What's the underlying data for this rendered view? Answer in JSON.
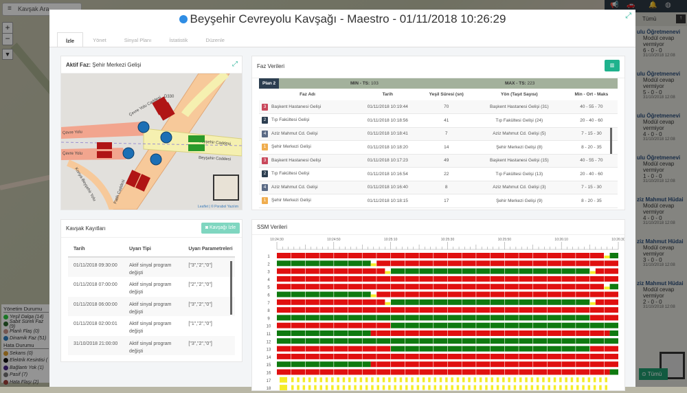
{
  "background": {
    "search_label": "Kavşak Ara",
    "zoom_in": "+",
    "zoom_out": "−",
    "legend": {
      "section1": "Yönetim Durumu",
      "items1": [
        {
          "label": "Yeşil Dalga (14)",
          "color": "#2ecc40"
        },
        {
          "label": "Sabit Süreli Faz (9)",
          "color": "#2d6a2d"
        },
        {
          "label": "Planlı Flaş (0)",
          "color": "#c9958a"
        },
        {
          "label": "Dinamik Faz (51)",
          "color": "#2f7fc0"
        }
      ],
      "section2": "Hata Durumu",
      "items2": [
        {
          "label": "Sekans (0)",
          "color": "#e0a030"
        },
        {
          "label": "Elektrik Kesintisi (",
          "color": "#111111"
        },
        {
          "label": "Bağlantı Yok (1)",
          "color": "#4b2a8a"
        },
        {
          "label": "Pasif (7)",
          "color": "#777777"
        },
        {
          "label": "Hata Flaşı (2)",
          "color": "#a0413a"
        }
      ]
    },
    "right_sidebar": {
      "filter": "Tümü",
      "items": [
        {
          "title": "ulu Öğretmenevi",
          "msg": "Modül cevap vermiyor",
          "code": "6 - 0 - 0",
          "date": "31/10/2018 12:08"
        },
        {
          "title": "ulu Öğretmenevi",
          "msg": "Modül cevap vermiyor",
          "code": "5 - 0 - 0",
          "date": "31/10/2018 12:08"
        },
        {
          "title": "ulu Öğretmenevi",
          "msg": "Modül cevap vermiyor",
          "code": "4 - 0 - 0",
          "date": "31/10/2018 12:08"
        },
        {
          "title": "ulu Öğretmenevi",
          "msg": "Modül cevap vermiyor",
          "code": "1 - 0 - 0",
          "date": "31/10/2018 12:08"
        },
        {
          "title": "ziz Mahmut Hüdai",
          "msg": "Modül cevap vermiyor",
          "code": "4 - 0 - 0",
          "date": "31/10/2018 12:08"
        },
        {
          "title": "ziz Mahmut Hüdai",
          "msg": "Modül cevap vermiyor",
          "code": "3 - 0 - 0",
          "date": "31/10/2018 12:08"
        },
        {
          "title": "ziz Mahmut Hüdai",
          "msg": "Modül cevap vermiyor",
          "code": "2 - 0 - 0",
          "date": "31/10/2018 12:08"
        }
      ],
      "all_button": "⊙ Tümü"
    }
  },
  "modal": {
    "title": "Beyşehir Cevreyolu Kavşağı - Maestro - 01/11/2018 10:26:29",
    "status_color": "#2f8de4",
    "tabs": [
      {
        "label": "İzle",
        "active": true
      },
      {
        "label": "Yönet"
      },
      {
        "label": "Sinyal Planı"
      },
      {
        "label": "İstatistik"
      },
      {
        "label": "Düzenle"
      }
    ]
  },
  "active_phase": {
    "label": "Aktif Faz:",
    "value": "Şehir Merkezi Gelişi",
    "map": {
      "labels": [
        "D330",
        "Çevre Yolu",
        "Çevre Yolu Caddesi",
        "Beyşehir Caddesi",
        "Beyşehir Caddesi",
        "Çevre Yolu",
        "Konya-Beyşehir Yolu",
        "Fatih Caddesi"
      ],
      "attribution": "Leaflet | © Porabol Yazılım"
    }
  },
  "faz": {
    "title": "Faz Verileri",
    "plan": "Plan 2",
    "min_label": "MIN - TS:",
    "min_value": "103",
    "max_label": "MAX - TS:",
    "max_value": "223",
    "columns": [
      "Faz Adı",
      "Tarih",
      "Yeşil Süresi (sn)",
      "Yön (Taşıt Sayısı)",
      "Min - Ort - Maks"
    ],
    "rows": [
      {
        "no": "3",
        "color": "#c9485b",
        "name": "Başkent Hastanesi Gelişi",
        "date": "01/11/2018 10:19:44",
        "green": "70",
        "dir": "Başkent Hastanesi Gelişi (31)",
        "mom": "40 - 55 - 70"
      },
      {
        "no": "2",
        "color": "#2c3e50",
        "name": "Tıp Fakültesi Gelişi",
        "date": "01/11/2018 10:18:56",
        "green": "41",
        "dir": "Tıp Fakültesi Gelişi (24)",
        "mom": "20 - 40 - 60"
      },
      {
        "no": "4",
        "color": "#5a6a85",
        "name": "Aziz Mahmut Cd. Gelişi",
        "date": "01/11/2018 10:18:41",
        "green": "7",
        "dir": "Aziz Mahmut Cd. Gelişi (5)",
        "mom": "7 - 15 - 30"
      },
      {
        "no": "1",
        "color": "#f0ad4e",
        "name": "Şehir Merkezi Gelişi",
        "date": "01/11/2018 10:18:20",
        "green": "14",
        "dir": "Şehir Merkezi Gelişi (8)",
        "mom": "8 - 20 - 35"
      },
      {
        "no": "3",
        "color": "#c9485b",
        "name": "Başkent Hastanesi Gelişi",
        "date": "01/11/2018 10:17:23",
        "green": "49",
        "dir": "Başkent Hastanesi Gelişi (15)",
        "mom": "40 - 55 - 70"
      },
      {
        "no": "2",
        "color": "#2c3e50",
        "name": "Tıp Fakültesi Gelişi",
        "date": "01/11/2018 10:16:54",
        "green": "22",
        "dir": "Tıp Fakültesi Gelişi (13)",
        "mom": "20 - 40 - 60"
      },
      {
        "no": "4",
        "color": "#5a6a85",
        "name": "Aziz Mahmut Cd. Gelişi",
        "date": "01/11/2018 10:16:40",
        "green": "8",
        "dir": "Aziz Mahmut Cd. Gelişi (3)",
        "mom": "7 - 15 - 30"
      },
      {
        "no": "1",
        "color": "#f0ad4e",
        "name": "Şehir Merkezi Gelişi",
        "date": "01/11/2018 10:18:15",
        "green": "17",
        "dir": "Şehir Merkezi Gelişi (9)",
        "mom": "8 - 20 - 35"
      }
    ]
  },
  "records": {
    "title": "Kavşak Kayıtları",
    "button": "Kavşağı İzle",
    "columns": [
      "Tarih",
      "Uyarı Tipi",
      "Uyarı Parametreleri"
    ],
    "rows": [
      {
        "date": "01/11/2018 09:30:00",
        "type": "Aktif sinyal program değişti",
        "params": "[\"3\",\"2\",\"0\"]"
      },
      {
        "date": "01/11/2018 07:00:00",
        "type": "Aktif sinyal program değişti",
        "params": "[\"2\",\"2\",\"0\"]"
      },
      {
        "date": "01/11/2018 06:00:00",
        "type": "Aktif sinyal program değişti",
        "params": "[\"3\",\"2\",\"0\"]"
      },
      {
        "date": "01/11/2018 02:00:01",
        "type": "Aktif sinyal program değişti",
        "params": "[\"1\",\"2\",\"0\"]"
      },
      {
        "date": "31/10/2018 21:00:00",
        "type": "Aktif sinyal program değişti",
        "params": "[\"3\",\"2\",\"0\"]"
      }
    ]
  },
  "ssm": {
    "title": "SSM Verileri",
    "chart_data": {
      "type": "timeline",
      "x_range": [
        "10:24:30",
        "10:26:30"
      ],
      "x_ticks": [
        "10:24:30",
        "10:24:50",
        "10:25:10",
        "10:25:30",
        "10:25:50",
        "10:26:10",
        "10:26:30"
      ],
      "colors": {
        "red": "#e01010",
        "green": "#0f7a10",
        "yellow": "#f5ec2a"
      },
      "rows": [
        {
          "label": "1",
          "segments": [
            [
              "10:24:30",
              "10:26:25",
              "red"
            ],
            [
              "10:26:25",
              "10:26:27",
              "yellow"
            ],
            [
              "10:26:27",
              "10:26:30",
              "green"
            ]
          ]
        },
        {
          "label": "2",
          "segments": [
            [
              "10:24:30",
              "10:25:03",
              "green"
            ],
            [
              "10:25:03",
              "10:25:05",
              "yellow"
            ],
            [
              "10:25:05",
              "10:26:30",
              "red"
            ]
          ]
        },
        {
          "label": "3",
          "segments": [
            [
              "10:24:30",
              "10:25:08",
              "red"
            ],
            [
              "10:25:08",
              "10:25:10",
              "yellow"
            ],
            [
              "10:25:10",
              "10:26:20",
              "green"
            ],
            [
              "10:26:20",
              "10:26:22",
              "yellow"
            ],
            [
              "10:26:22",
              "10:26:30",
              "red"
            ]
          ]
        },
        {
          "label": "4",
          "segments": [
            [
              "10:24:30",
              "10:26:30",
              "red"
            ]
          ]
        },
        {
          "label": "5",
          "segments": [
            [
              "10:24:30",
              "10:26:25",
              "red"
            ],
            [
              "10:26:25",
              "10:26:27",
              "yellow"
            ],
            [
              "10:26:27",
              "10:26:30",
              "green"
            ]
          ]
        },
        {
          "label": "6",
          "segments": [
            [
              "10:24:30",
              "10:25:03",
              "green"
            ],
            [
              "10:25:03",
              "10:25:05",
              "yellow"
            ],
            [
              "10:25:05",
              "10:26:30",
              "red"
            ]
          ]
        },
        {
          "label": "7",
          "segments": [
            [
              "10:24:30",
              "10:25:08",
              "red"
            ],
            [
              "10:25:08",
              "10:25:10",
              "yellow"
            ],
            [
              "10:25:10",
              "10:26:20",
              "green"
            ],
            [
              "10:26:20",
              "10:26:22",
              "yellow"
            ],
            [
              "10:26:22",
              "10:26:30",
              "red"
            ]
          ]
        },
        {
          "label": "8",
          "segments": [
            [
              "10:24:30",
              "10:26:30",
              "red"
            ]
          ]
        },
        {
          "label": "9",
          "segments": [
            [
              "10:24:30",
              "10:26:20",
              "green"
            ],
            [
              "10:26:20",
              "10:26:30",
              "red"
            ]
          ]
        },
        {
          "label": "10",
          "segments": [
            [
              "10:24:30",
              "10:25:10",
              "red"
            ],
            [
              "10:25:10",
              "10:26:30",
              "green"
            ]
          ]
        },
        {
          "label": "11",
          "segments": [
            [
              "10:24:30",
              "10:25:03",
              "green"
            ],
            [
              "10:25:03",
              "10:26:27",
              "red"
            ],
            [
              "10:26:27",
              "10:26:30",
              "green"
            ]
          ]
        },
        {
          "label": "12",
          "segments": [
            [
              "10:24:30",
              "10:26:30",
              "green"
            ]
          ]
        },
        {
          "label": "13",
          "segments": [
            [
              "10:24:30",
              "10:25:10",
              "red"
            ],
            [
              "10:25:10",
              "10:26:20",
              "green"
            ],
            [
              "10:26:20",
              "10:26:30",
              "red"
            ]
          ]
        },
        {
          "label": "14",
          "segments": [
            [
              "10:24:30",
              "10:26:30",
              "red"
            ]
          ]
        },
        {
          "label": "15",
          "segments": [
            [
              "10:24:30",
              "10:25:03",
              "green"
            ],
            [
              "10:25:03",
              "10:26:30",
              "red"
            ]
          ]
        },
        {
          "label": "16",
          "segments": [
            [
              "10:24:30",
              "10:26:27",
              "red"
            ],
            [
              "10:26:27",
              "10:26:30",
              "green"
            ]
          ]
        },
        {
          "label": "17",
          "flash": "yellow"
        },
        {
          "label": "18",
          "flash": "yellow"
        }
      ]
    }
  }
}
